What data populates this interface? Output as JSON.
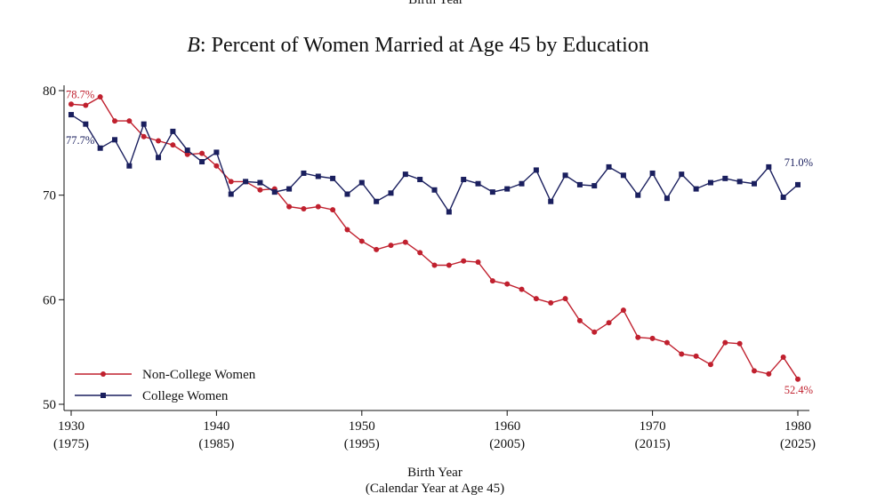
{
  "top_clipped_text": "Birth Year",
  "chart_data": {
    "type": "line",
    "title_prefix": "B",
    "title": ": Percent of Women Married at Age 45 by Education",
    "xlabel": "Birth Year",
    "xlabel2": "(Calendar Year at Age 45)",
    "ylabel": "",
    "xlim": [
      1930,
      1980
    ],
    "ylim": [
      50,
      80
    ],
    "yticks": [
      50,
      60,
      70,
      80
    ],
    "xticks": [
      {
        "value": 1930,
        "label": "1930",
        "sub": "(1975)"
      },
      {
        "value": 1940,
        "label": "1940",
        "sub": "(1985)"
      },
      {
        "value": 1950,
        "label": "1950",
        "sub": "(1995)"
      },
      {
        "value": 1960,
        "label": "1960",
        "sub": "(2005)"
      },
      {
        "value": 1970,
        "label": "1970",
        "sub": "(2015)"
      },
      {
        "value": 1980,
        "label": "1980",
        "sub": "(2025)"
      }
    ],
    "x": [
      1930,
      1931,
      1932,
      1933,
      1934,
      1935,
      1936,
      1937,
      1938,
      1939,
      1940,
      1941,
      1942,
      1943,
      1944,
      1945,
      1946,
      1947,
      1948,
      1949,
      1950,
      1951,
      1952,
      1953,
      1954,
      1955,
      1956,
      1957,
      1958,
      1959,
      1960,
      1961,
      1962,
      1963,
      1964,
      1965,
      1966,
      1967,
      1968,
      1969,
      1970,
      1971,
      1972,
      1973,
      1974,
      1975,
      1976,
      1977,
      1978,
      1979,
      1980
    ],
    "series": [
      {
        "name": "Non-College Women",
        "color": "#c0202e",
        "marker": "circle",
        "values": [
          78.7,
          78.6,
          79.4,
          77.1,
          77.1,
          75.6,
          75.2,
          74.8,
          73.9,
          74.0,
          72.8,
          71.3,
          71.3,
          70.5,
          70.6,
          68.9,
          68.7,
          68.9,
          68.6,
          66.7,
          65.6,
          64.8,
          65.2,
          65.5,
          64.5,
          63.3,
          63.3,
          63.7,
          63.6,
          61.8,
          61.5,
          61.0,
          60.1,
          59.7,
          60.1,
          58.0,
          56.9,
          57.8,
          59.0,
          56.4,
          56.3,
          55.9,
          54.8,
          54.6,
          53.8,
          55.9,
          55.8,
          53.2,
          52.9,
          54.5,
          52.4
        ],
        "end_labels": {
          "first": "78.7%",
          "last": "52.4%"
        }
      },
      {
        "name": "College Women",
        "color": "#1a1f5e",
        "marker": "square",
        "values": [
          77.7,
          76.8,
          74.5,
          75.3,
          72.8,
          76.8,
          73.6,
          76.1,
          74.3,
          73.2,
          74.1,
          70.1,
          71.3,
          71.2,
          70.3,
          70.6,
          72.1,
          71.8,
          71.6,
          70.1,
          71.2,
          69.4,
          70.2,
          72.0,
          71.5,
          70.5,
          68.4,
          71.5,
          71.1,
          70.3,
          70.6,
          71.1,
          72.4,
          69.4,
          71.9,
          71.0,
          70.9,
          72.7,
          71.9,
          70.0,
          72.1,
          69.7,
          72.0,
          70.6,
          71.2,
          71.6,
          71.3,
          71.1,
          72.7,
          69.8,
          71.0
        ],
        "end_labels": {
          "first": "77.7%",
          "last": "71.0%"
        }
      }
    ],
    "legend_position": "bottom-left",
    "grid": false
  }
}
